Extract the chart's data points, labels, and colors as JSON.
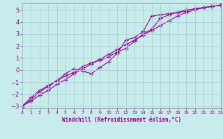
{
  "xlabel": "Windchill (Refroidissement éolien,°C)",
  "bg_color": "#c8ecec",
  "grid_color": "#a8d4d4",
  "line_color": "#990099",
  "xmin": 0,
  "xmax": 23,
  "ymin": -3.2,
  "ymax": 5.6,
  "yticks": [
    -3,
    -2,
    -1,
    0,
    1,
    2,
    3,
    4,
    5
  ],
  "xticks": [
    0,
    1,
    2,
    3,
    4,
    5,
    6,
    7,
    8,
    9,
    10,
    11,
    12,
    13,
    14,
    15,
    16,
    17,
    18,
    19,
    20,
    21,
    22,
    23
  ],
  "line1_x": [
    0,
    1,
    2,
    3,
    4,
    5,
    6,
    7,
    8,
    9,
    10,
    11,
    12,
    13,
    14,
    15,
    16,
    17,
    18,
    19,
    20,
    21,
    22,
    23
  ],
  "line1_y": [
    -3.0,
    -2.6,
    -2.1,
    -1.7,
    -1.2,
    -0.8,
    -0.3,
    0.1,
    0.5,
    0.9,
    1.3,
    1.7,
    2.1,
    2.5,
    2.9,
    3.3,
    3.7,
    4.1,
    4.5,
    4.8,
    5.0,
    5.2,
    5.3,
    5.4
  ],
  "line2_x": [
    0,
    1,
    2,
    3,
    4,
    5,
    6,
    7,
    8,
    9,
    10,
    11,
    12,
    13,
    14,
    15,
    16,
    17,
    18,
    19,
    20,
    21,
    22,
    23
  ],
  "line2_y": [
    -3.0,
    -2.5,
    -1.8,
    -1.4,
    -0.9,
    -0.3,
    0.1,
    -0.1,
    -0.3,
    0.2,
    0.7,
    1.4,
    2.5,
    2.7,
    3.2,
    4.5,
    4.6,
    4.7,
    4.8,
    4.9,
    5.1,
    5.2,
    5.3,
    5.4
  ],
  "line3_x": [
    0,
    1,
    2,
    3,
    4,
    5,
    6,
    7,
    8,
    9,
    10,
    11,
    12,
    13,
    14,
    15,
    16,
    17,
    18,
    19,
    20,
    21,
    22,
    23
  ],
  "line3_y": [
    -3.0,
    -2.3,
    -1.7,
    -1.3,
    -0.9,
    -0.5,
    -0.2,
    0.3,
    0.6,
    0.8,
    1.1,
    1.5,
    1.8,
    2.4,
    3.0,
    3.4,
    4.3,
    4.6,
    4.8,
    5.0,
    5.1,
    5.2,
    5.3,
    5.4
  ]
}
